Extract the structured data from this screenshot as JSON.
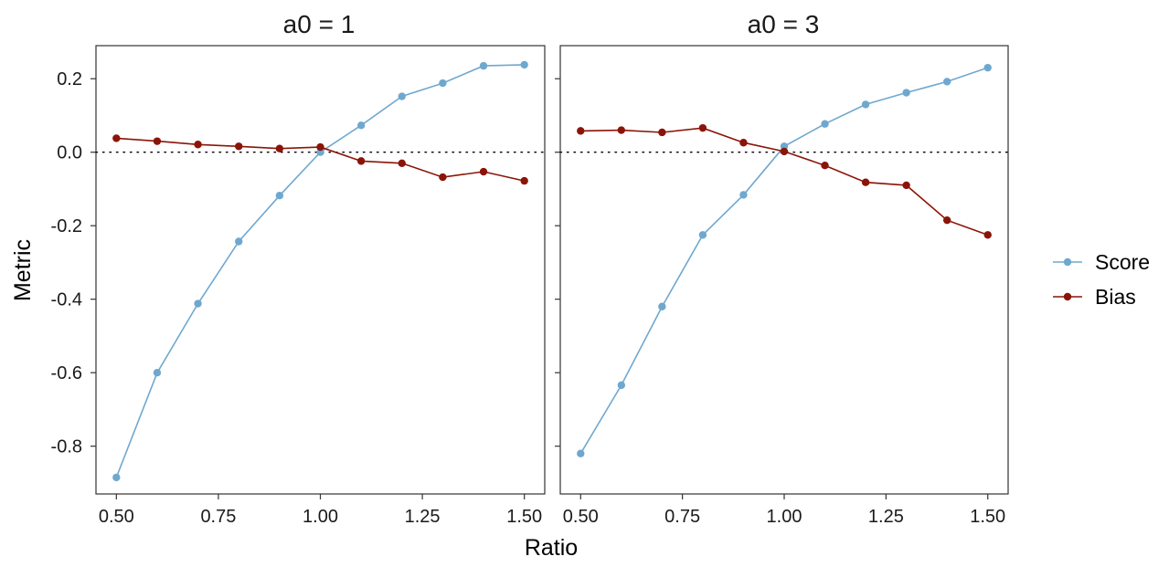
{
  "chart_data": {
    "type": "line",
    "xlabel": "Ratio",
    "ylabel": "Metric",
    "xlim": [
      0.45,
      1.55
    ],
    "ylim": [
      -0.93,
      0.29
    ],
    "x_ticks": [
      0.5,
      0.75,
      1.0,
      1.25,
      1.5
    ],
    "x_tick_labels": [
      "0.50",
      "0.75",
      "1.00",
      "1.25",
      "1.50"
    ],
    "y_ticks": [
      0.2,
      0.0,
      -0.2,
      -0.4,
      -0.6,
      -0.8
    ],
    "y_tick_labels": [
      "0.2",
      "0.0",
      "-0.2",
      "-0.4",
      "-0.6",
      "-0.8"
    ],
    "reference_line": {
      "y": 0,
      "style": "dotted"
    },
    "legend": {
      "position": "right",
      "entries": [
        {
          "name": "Score",
          "color": "#6fa8cf"
        },
        {
          "name": "Bias",
          "color": "#8b1408"
        }
      ]
    },
    "panels": [
      {
        "title": "a0 = 1",
        "x": [
          0.5,
          0.6,
          0.7,
          0.8,
          0.9,
          1.0,
          1.1,
          1.2,
          1.3,
          1.4,
          1.5
        ],
        "series": [
          {
            "name": "Score",
            "color": "#6fa8cf",
            "values": [
              -0.885,
              -0.6,
              -0.412,
              -0.243,
              -0.118,
              0.0,
              0.073,
              0.152,
              0.188,
              0.235,
              0.238
            ]
          },
          {
            "name": "Bias",
            "color": "#8b1408",
            "values": [
              0.038,
              0.03,
              0.021,
              0.016,
              0.01,
              0.014,
              -0.024,
              -0.03,
              -0.068,
              -0.053,
              -0.078
            ]
          }
        ]
      },
      {
        "title": "a0 = 3",
        "x": [
          0.5,
          0.6,
          0.7,
          0.8,
          0.9,
          1.0,
          1.1,
          1.2,
          1.3,
          1.4,
          1.5
        ],
        "series": [
          {
            "name": "Score",
            "color": "#6fa8cf",
            "values": [
              -0.82,
              -0.634,
              -0.42,
              -0.225,
              -0.116,
              0.016,
              0.077,
              0.13,
              0.162,
              0.192,
              0.23
            ]
          },
          {
            "name": "Bias",
            "color": "#8b1408",
            "values": [
              0.058,
              0.06,
              0.054,
              0.066,
              0.026,
              0.002,
              -0.036,
              -0.082,
              -0.09,
              -0.185,
              -0.225
            ]
          }
        ]
      }
    ]
  }
}
